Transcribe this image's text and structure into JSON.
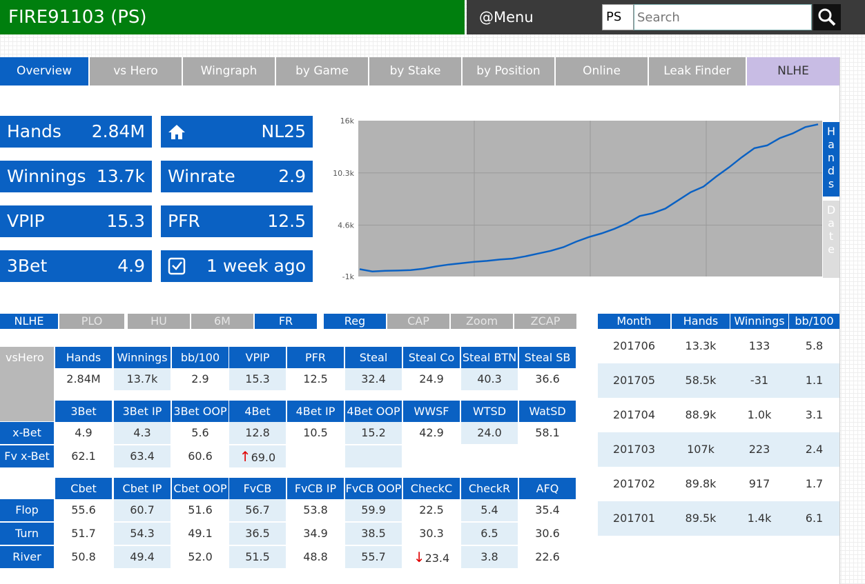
{
  "header": {
    "title": "FIRE91103 (PS)",
    "menu": "@Menu",
    "site": "PS",
    "search_placeholder": "Search"
  },
  "tabs": [
    "Overview",
    "vs Hero",
    "Wingraph",
    "by Game",
    "by Stake",
    "by Position",
    "Online",
    "Leak Finder",
    "NLHE"
  ],
  "stats": [
    {
      "label": "Hands",
      "value": "2.84M"
    },
    {
      "label": "home-icon",
      "value": "NL25"
    },
    {
      "label": "Winnings",
      "value": "13.7k"
    },
    {
      "label": "Winrate",
      "value": "2.9"
    },
    {
      "label": "VPIP",
      "value": "15.3"
    },
    {
      "label": "PFR",
      "value": "12.5"
    },
    {
      "label": "3Bet",
      "value": "4.9"
    },
    {
      "label": "calendar-icon",
      "value": "1 week ago"
    }
  ],
  "chart_data": {
    "type": "line",
    "y_ticks": [
      "16k",
      "10.3k",
      "4.6k",
      "-1k"
    ],
    "ylim": [
      -1000,
      16000
    ],
    "x_label_buttons": [
      "Hands",
      "Date"
    ],
    "series": [
      {
        "values": [
          -200,
          -450,
          -380,
          -350,
          -300,
          -150,
          100,
          300,
          450,
          600,
          700,
          850,
          950,
          1200,
          1500,
          1800,
          2200,
          2800,
          3300,
          3700,
          4200,
          4800,
          5600,
          5900,
          6400,
          7300,
          8200,
          8800,
          9900,
          10900,
          12000,
          13000,
          13300,
          14100,
          14600,
          15300,
          15600
        ]
      }
    ]
  },
  "filters": {
    "game": [
      "NLHE",
      "PLO",
      "HU",
      "6M",
      "FR"
    ],
    "type": [
      "Reg",
      "CAP",
      "Zoom",
      "ZCAP"
    ],
    "active": [
      "NLHE",
      "FR",
      "Reg"
    ]
  },
  "grid": {
    "corner": "vsHero",
    "header1": [
      "Hands",
      "Winnings",
      "bb/100",
      "VPIP",
      "PFR",
      "Steal",
      "Steal Co",
      "Steal BTN",
      "Steal SB"
    ],
    "row1": [
      "2.84M",
      "13.7k",
      "2.9",
      "15.3",
      "12.5",
      "32.4",
      "24.9",
      "40.3",
      "36.6"
    ],
    "header2": [
      "3Bet",
      "3Bet IP",
      "3Bet OOP",
      "4Bet",
      "4Bet IP",
      "4Bet OOP",
      "WWSF",
      "WTSD",
      "WatSD"
    ],
    "xbet_label": "x-Bet",
    "xbet": [
      "4.9",
      "4.3",
      "5.6",
      "12.8",
      "10.5",
      "15.2",
      "42.9",
      "24.0",
      "58.1"
    ],
    "fvxbet_label": "Fv x-Bet",
    "fvxbet": [
      "62.1",
      "63.4",
      "60.6",
      "69.0",
      "",
      ""
    ],
    "fvxbet_arrow": "↑",
    "header3": [
      "Cbet",
      "Cbet IP",
      "Cbet OOP",
      "FvCB",
      "FvCB IP",
      "FvCB OOP",
      "CheckC",
      "CheckR",
      "AFQ"
    ],
    "street_labels": [
      "Flop",
      "Turn",
      "River"
    ],
    "flop": [
      "55.6",
      "60.7",
      "51.6",
      "56.7",
      "53.8",
      "59.9",
      "22.5",
      "5.4",
      "35.4"
    ],
    "turn": [
      "51.7",
      "54.3",
      "49.1",
      "36.5",
      "34.9",
      "38.5",
      "30.3",
      "6.5",
      "30.6"
    ],
    "river": [
      "50.8",
      "49.4",
      "52.0",
      "51.5",
      "48.8",
      "55.7",
      "23.4",
      "3.8",
      "22.6"
    ],
    "river_arrow": "↓"
  },
  "months": {
    "headers": [
      "Month",
      "Hands",
      "Winnings",
      "bb/100"
    ],
    "rows": [
      [
        "201706",
        "13.3k",
        "133",
        "5.8"
      ],
      [
        "201705",
        "58.5k",
        "-31",
        "1.1"
      ],
      [
        "201704",
        "88.9k",
        "1.0k",
        "3.1"
      ],
      [
        "201703",
        "107k",
        "223",
        "2.4"
      ],
      [
        "201702",
        "89.8k",
        "917",
        "1.7"
      ],
      [
        "201701",
        "89.5k",
        "1.4k",
        "6.1"
      ]
    ]
  },
  "colors": {
    "header_green": "#007f0e",
    "blue": "#0a61c3",
    "nlhe_tab": "#c8bce4",
    "line": "#0a61c3",
    "chart_bg": "#b3b3b3"
  }
}
